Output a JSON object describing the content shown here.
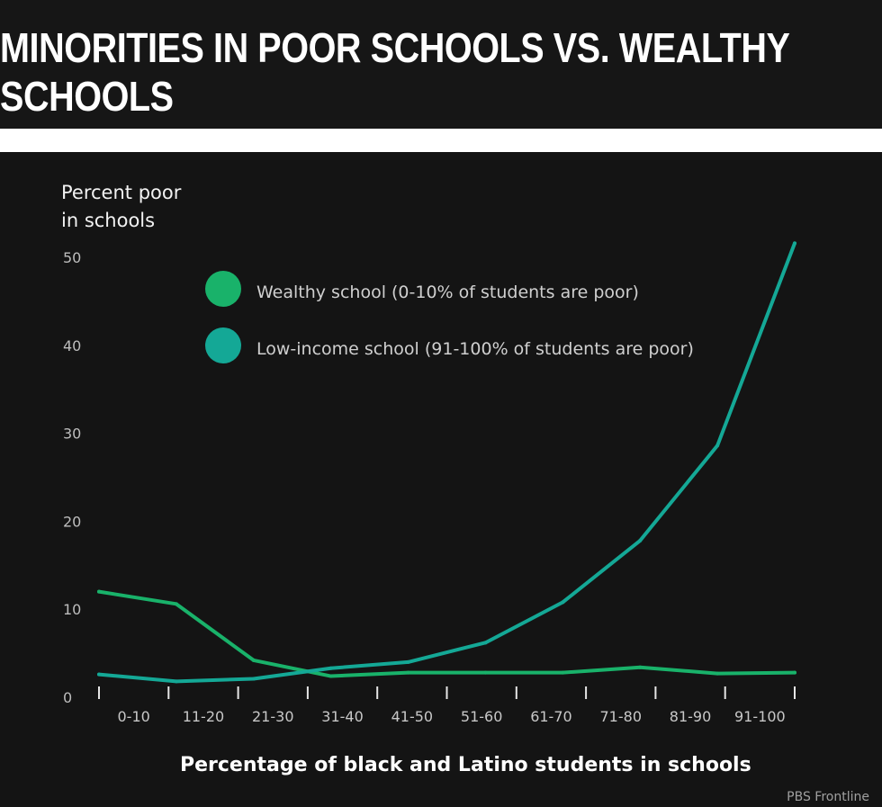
{
  "header": {
    "title": "MINORITIES IN POOR SCHOOLS VS. WEALTHY SCHOOLS"
  },
  "colors": {
    "header_bg": "#161616",
    "panel_bg": "#141414",
    "wealthy": "#19b26a",
    "low_income": "#14a896"
  },
  "chart_data": {
    "type": "line",
    "title": "",
    "ylabel_lines": [
      "Percent poor",
      "in schools"
    ],
    "xlabel": "Percentage of black and Latino students in schools",
    "categories": [
      "0-10",
      "11-20",
      "21-30",
      "31-40",
      "41-50",
      "51-60",
      "61-70",
      "71-80",
      "81-90",
      "91-100"
    ],
    "yticks": [
      "0",
      "10",
      "20",
      "30",
      "40",
      "50"
    ],
    "ylim": [
      0,
      50
    ],
    "grid": false,
    "legend_position": "top-center",
    "series": [
      {
        "name": "Wealthy school (0-10% of students are poor)",
        "color": "#19b26a",
        "values": [
          12,
          10.6,
          4.2,
          2.4,
          2.8,
          2.8,
          2.8,
          3.4,
          2.7,
          2.8
        ]
      },
      {
        "name": "Low-income school (91-100% of students are poor)",
        "color": "#14a896",
        "values": [
          2.6,
          1.8,
          2.1,
          3.3,
          4,
          6.2,
          10.8,
          17.8,
          28.6,
          51.6
        ]
      }
    ],
    "source": "PBS Frontline"
  }
}
